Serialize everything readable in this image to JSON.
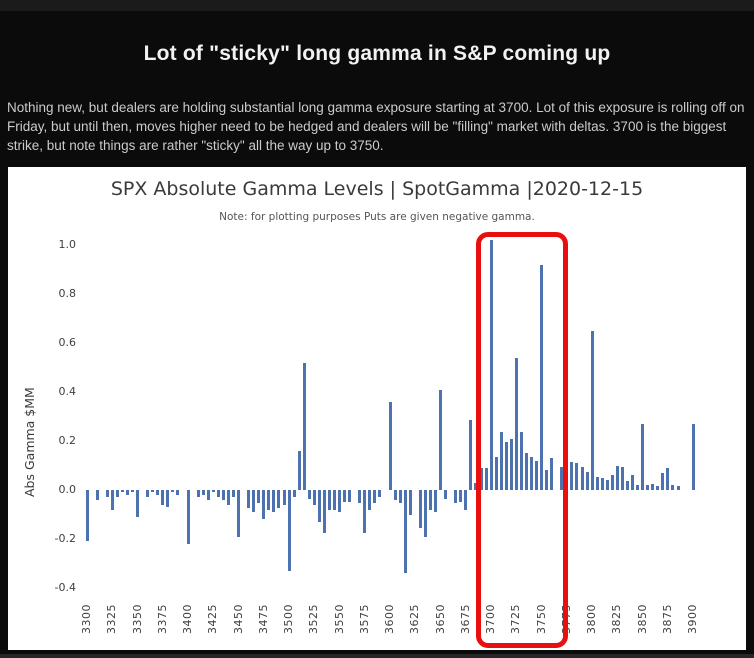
{
  "page": {
    "title": "Lot of \"sticky\" long gamma in S&P coming up",
    "description": "Nothing new, but dealers are holding substantial long gamma exposure starting at 3700. Lot of this exposure is rolling off on Friday, but until then, moves higher need to be hedged and dealers will be \"filling\" market with deltas. 3700 is the biggest strike, but note things are rather \"sticky\" all the way up to 3750."
  },
  "colors": {
    "page_bg": "#0b0b0b",
    "panel_bg": "#ffffff",
    "bar": "#4c72b0",
    "highlight_box": "#e90f0f",
    "title_text": "#f2f2f2",
    "body_text": "#cbcbcb",
    "chart_text": "#3a3a3a",
    "tick_text": "#3f3f3f"
  },
  "chart_data": {
    "type": "bar",
    "title": "SPX Absolute Gamma Levels | SpotGamma |2020-12-15",
    "subtitle": "Note: for plotting purposes Puts are given negative gamma.",
    "xlabel": "",
    "ylabel": "Abs Gamma $MM",
    "ylim": [
      -0.45,
      1.08
    ],
    "x_range": [
      3300,
      3900
    ],
    "x_tick_step": 25,
    "x_tick_labels": [
      "3300",
      "3325",
      "3350",
      "3375",
      "3400",
      "3425",
      "3450",
      "3475",
      "3500",
      "3525",
      "3550",
      "3575",
      "3600",
      "3625",
      "3650",
      "3675",
      "3700",
      "3725",
      "3750",
      "3775",
      "3800",
      "3825",
      "3850",
      "3875",
      "3900"
    ],
    "y_ticks": [
      "1.0",
      "0.8",
      "0.6",
      "0.4",
      "0.2",
      "0.0",
      "-0.2",
      "-0.4"
    ],
    "y_tick_values": [
      1.0,
      0.8,
      0.6,
      0.4,
      0.2,
      0.0,
      -0.2,
      -0.4
    ],
    "grid": false,
    "legend_position": "none",
    "bars": [
      [
        3300,
        -0.21
      ],
      [
        3305,
        0
      ],
      [
        3310,
        -0.04
      ],
      [
        3315,
        0
      ],
      [
        3320,
        -0.03
      ],
      [
        3325,
        -0.08
      ],
      [
        3330,
        -0.03
      ],
      [
        3335,
        -0.01
      ],
      [
        3340,
        -0.02
      ],
      [
        3345,
        -0.01
      ],
      [
        3350,
        -0.11
      ],
      [
        3355,
        0
      ],
      [
        3360,
        -0.03
      ],
      [
        3365,
        -0.01
      ],
      [
        3370,
        -0.02
      ],
      [
        3375,
        -0.06
      ],
      [
        3380,
        -0.07
      ],
      [
        3385,
        -0.01
      ],
      [
        3390,
        -0.02
      ],
      [
        3395,
        0
      ],
      [
        3400,
        -0.22
      ],
      [
        3405,
        0
      ],
      [
        3410,
        -0.03
      ],
      [
        3415,
        -0.02
      ],
      [
        3420,
        -0.04
      ],
      [
        3425,
        -0.01
      ],
      [
        3430,
        -0.03
      ],
      [
        3435,
        -0.04
      ],
      [
        3440,
        -0.06
      ],
      [
        3445,
        -0.03
      ],
      [
        3450,
        -0.19
      ],
      [
        3455,
        0
      ],
      [
        3460,
        -0.075
      ],
      [
        3465,
        -0.09
      ],
      [
        3470,
        -0.055
      ],
      [
        3475,
        -0.12
      ],
      [
        3480,
        -0.08
      ],
      [
        3485,
        -0.09
      ],
      [
        3490,
        -0.075
      ],
      [
        3495,
        -0.06
      ],
      [
        3500,
        -0.33
      ],
      [
        3505,
        -0.03
      ],
      [
        3510,
        0.16
      ],
      [
        3515,
        0.52
      ],
      [
        3520,
        -0.035
      ],
      [
        3525,
        -0.06
      ],
      [
        3530,
        -0.13
      ],
      [
        3535,
        -0.175
      ],
      [
        3540,
        -0.08
      ],
      [
        3545,
        -0.08
      ],
      [
        3550,
        -0.09
      ],
      [
        3555,
        -0.05
      ],
      [
        3560,
        -0.05
      ],
      [
        3565,
        0
      ],
      [
        3570,
        -0.055
      ],
      [
        3575,
        -0.175
      ],
      [
        3580,
        -0.08
      ],
      [
        3585,
        -0.055
      ],
      [
        3590,
        -0.03
      ],
      [
        3595,
        0
      ],
      [
        3600,
        0.36
      ],
      [
        3605,
        -0.04
      ],
      [
        3610,
        -0.055
      ],
      [
        3615,
        -0.34
      ],
      [
        3620,
        -0.1
      ],
      [
        3625,
        0
      ],
      [
        3630,
        -0.155
      ],
      [
        3635,
        -0.19
      ],
      [
        3640,
        -0.08
      ],
      [
        3645,
        -0.09
      ],
      [
        3650,
        0.41
      ],
      [
        3655,
        -0.035
      ],
      [
        3660,
        0
      ],
      [
        3665,
        -0.055
      ],
      [
        3670,
        -0.05
      ],
      [
        3675,
        -0.08
      ],
      [
        3680,
        0.285
      ],
      [
        3685,
        0.03
      ],
      [
        3690,
        0.09
      ],
      [
        3695,
        0.09
      ],
      [
        3700,
        1.02
      ],
      [
        3705,
        0.135
      ],
      [
        3710,
        0.235
      ],
      [
        3715,
        0.195
      ],
      [
        3720,
        0.21
      ],
      [
        3725,
        0.54
      ],
      [
        3730,
        0.235
      ],
      [
        3735,
        0.15
      ],
      [
        3740,
        0.135
      ],
      [
        3745,
        0.12
      ],
      [
        3750,
        0.92
      ],
      [
        3755,
        0.08
      ],
      [
        3760,
        0.13
      ],
      [
        3765,
        0
      ],
      [
        3770,
        0.095
      ],
      [
        3775,
        0.3
      ],
      [
        3780,
        0.115
      ],
      [
        3785,
        0.11
      ],
      [
        3790,
        0.095
      ],
      [
        3795,
        0.075
      ],
      [
        3800,
        0.65
      ],
      [
        3805,
        0.055
      ],
      [
        3810,
        0.05
      ],
      [
        3815,
        0.04
      ],
      [
        3820,
        0.06
      ],
      [
        3825,
        0.1
      ],
      [
        3830,
        0.095
      ],
      [
        3835,
        0.035
      ],
      [
        3840,
        0.06
      ],
      [
        3845,
        0.02
      ],
      [
        3850,
        0.27
      ],
      [
        3855,
        0.02
      ],
      [
        3860,
        0.025
      ],
      [
        3865,
        0.015
      ],
      [
        3870,
        0.07
      ],
      [
        3875,
        0.09
      ],
      [
        3880,
        0.02
      ],
      [
        3885,
        0.015
      ],
      [
        3890,
        0
      ],
      [
        3895,
        0
      ],
      [
        3900,
        0.27
      ]
    ],
    "annotation": {
      "type": "highlight-box",
      "color": "#e90f0f",
      "strikes_from": 3690,
      "strikes_to": 3760,
      "note": "red rectangle drawn around the 3700-3750 strike cluster including axis labels"
    }
  }
}
